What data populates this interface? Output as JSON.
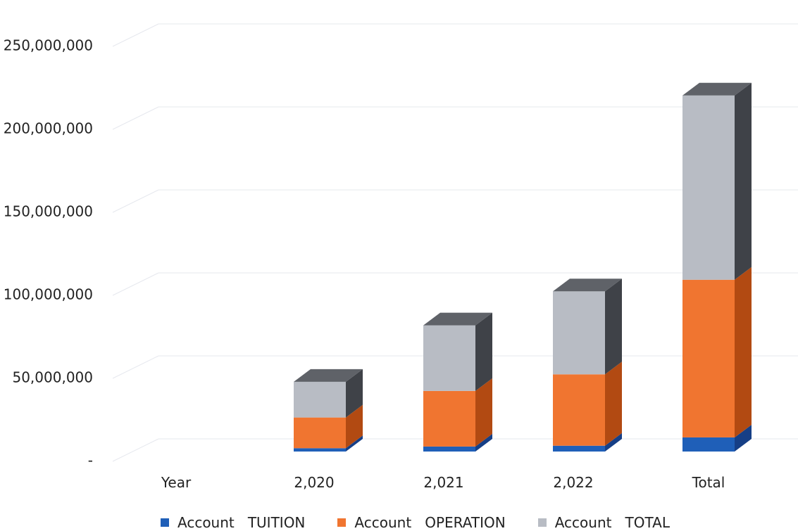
{
  "chart_data": {
    "type": "bar",
    "stacked": true,
    "style": "3d-column",
    "categories": [
      "Year",
      "2,020",
      "2,021",
      "2,022",
      "Total"
    ],
    "series": [
      {
        "name": "Account   TUITION",
        "color": "#1f5fb8",
        "values": [
          0,
          2000000,
          3000000,
          3500000,
          8500000
        ]
      },
      {
        "name": "Account   OPERATION",
        "color": "#f07530",
        "values": [
          0,
          18500000,
          33500000,
          43000000,
          95000000
        ]
      },
      {
        "name": "Account   TOTAL",
        "color": "#b8bcc4",
        "values": [
          0,
          21500000,
          39500000,
          50000000,
          111000000
        ]
      }
    ],
    "y_ticks": [
      "-",
      "50,000,000",
      "100,000,000",
      "150,000,000",
      "200,000,000",
      "250,000,000"
    ],
    "ylim": [
      0,
      270000000
    ],
    "grid": true,
    "legend_position": "bottom",
    "title": "",
    "xlabel": "",
    "ylabel": ""
  }
}
